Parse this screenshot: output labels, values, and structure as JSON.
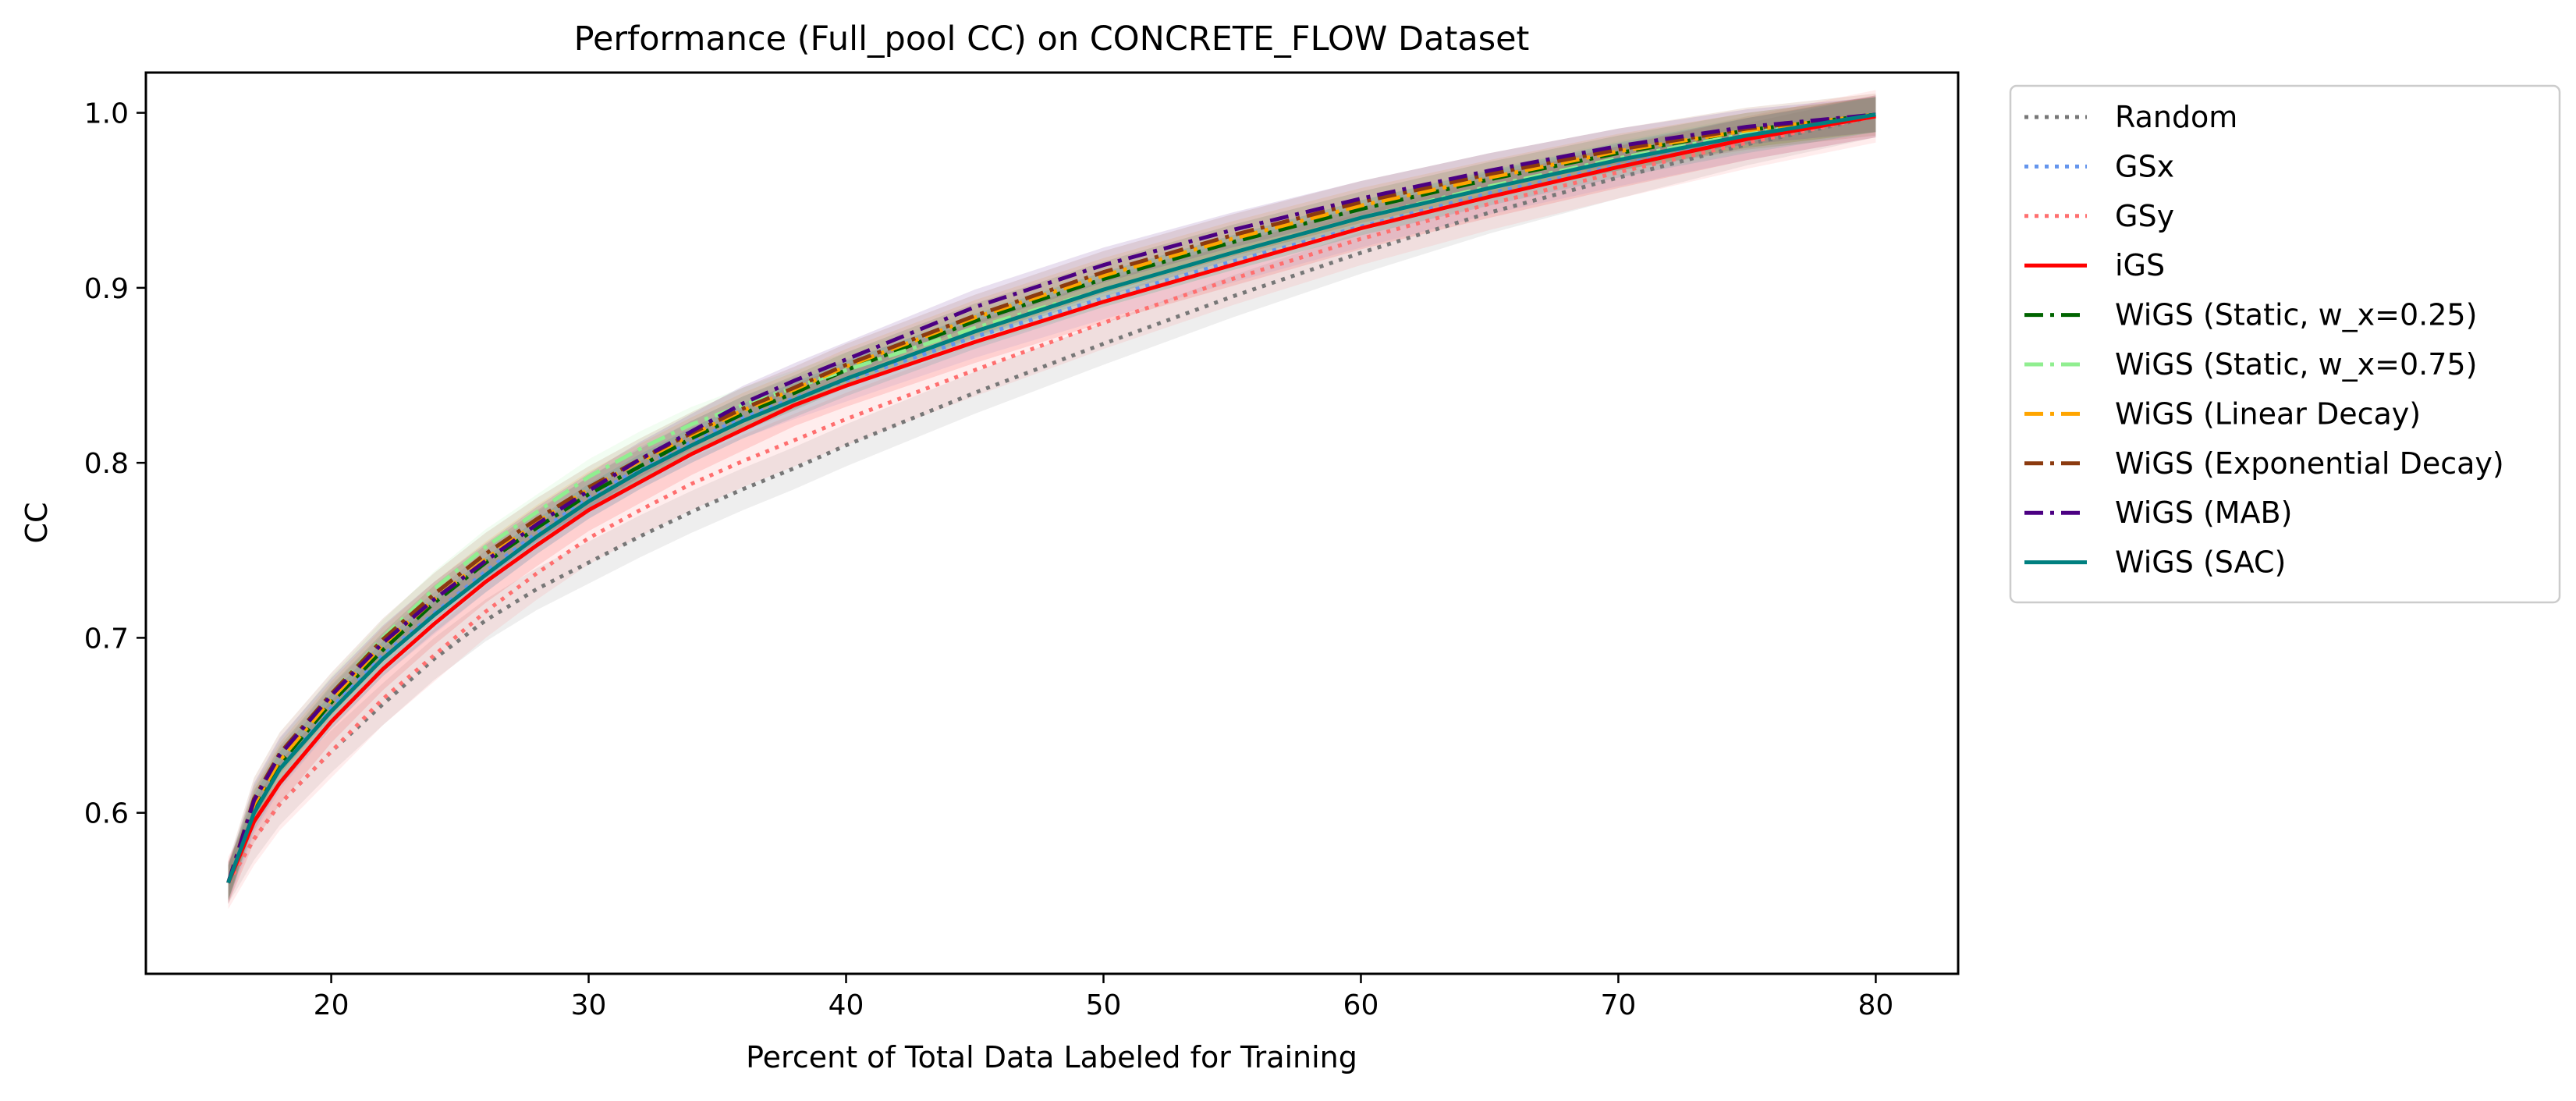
{
  "chart_data": {
    "type": "line",
    "title": "Performance (Full_pool CC) on CONCRETE_FLOW Dataset",
    "xlabel": "Percent of Total Data Labeled for Training",
    "ylabel": "CC",
    "xlim": [
      12.8,
      83.2
    ],
    "ylim": [
      0.508,
      1.023
    ],
    "xticks": [
      20,
      30,
      40,
      50,
      60,
      70,
      80
    ],
    "xtick_labels": [
      "20",
      "30",
      "40",
      "50",
      "60",
      "70",
      "80"
    ],
    "yticks": [
      0.6,
      0.7,
      0.8,
      0.9,
      1.0
    ],
    "ytick_labels": [
      "0.6",
      "0.7",
      "0.8",
      "0.9",
      "1.0"
    ],
    "grid": false,
    "legend_position": "outside-right-top",
    "x": [
      16,
      17,
      18,
      20,
      22,
      24,
      26,
      28,
      30,
      32,
      34,
      36,
      38,
      40,
      45,
      50,
      55,
      60,
      65,
      70,
      75,
      80
    ],
    "series": [
      {
        "name": "Random",
        "color": "#777777",
        "style": "dotted",
        "band": 0.012,
        "values": [
          0.56,
          0.585,
          0.605,
          0.635,
          0.662,
          0.688,
          0.71,
          0.728,
          0.743,
          0.758,
          0.772,
          0.785,
          0.797,
          0.81,
          0.84,
          0.868,
          0.895,
          0.92,
          0.943,
          0.963,
          0.982,
          0.998
        ]
      },
      {
        "name": "GSx",
        "color": "#6495ED",
        "style": "dotted",
        "band": 0.012,
        "values": [
          0.56,
          0.6,
          0.625,
          0.66,
          0.69,
          0.714,
          0.738,
          0.76,
          0.78,
          0.797,
          0.812,
          0.826,
          0.837,
          0.847,
          0.872,
          0.894,
          0.915,
          0.935,
          0.954,
          0.97,
          0.985,
          0.998
        ]
      },
      {
        "name": "GSy",
        "color": "#FF6F6F",
        "style": "dotted",
        "band": 0.015,
        "values": [
          0.56,
          0.585,
          0.605,
          0.635,
          0.665,
          0.69,
          0.715,
          0.737,
          0.757,
          0.773,
          0.788,
          0.801,
          0.813,
          0.825,
          0.853,
          0.88,
          0.905,
          0.928,
          0.948,
          0.966,
          0.983,
          0.998
        ]
      },
      {
        "name": "iGS",
        "color": "#FF0000",
        "style": "solid",
        "band": 0.012,
        "values": [
          0.56,
          0.595,
          0.617,
          0.652,
          0.682,
          0.708,
          0.732,
          0.753,
          0.773,
          0.789,
          0.805,
          0.819,
          0.833,
          0.844,
          0.869,
          0.892,
          0.913,
          0.934,
          0.952,
          0.969,
          0.985,
          0.998
        ]
      },
      {
        "name": "WiGS (Static, w_x=0.25)",
        "color": "#006400",
        "style": "dashdot",
        "band": 0.01,
        "values": [
          0.56,
          0.603,
          0.628,
          0.663,
          0.693,
          0.72,
          0.743,
          0.763,
          0.782,
          0.798,
          0.814,
          0.828,
          0.84,
          0.853,
          0.881,
          0.905,
          0.926,
          0.945,
          0.962,
          0.977,
          0.99,
          0.999
        ]
      },
      {
        "name": "WiGS (Static, w_x=0.75)",
        "color": "#90EE90",
        "style": "dashdot",
        "band": 0.01,
        "values": [
          0.56,
          0.606,
          0.632,
          0.668,
          0.7,
          0.728,
          0.752,
          0.772,
          0.792,
          0.808,
          0.822,
          0.833,
          0.843,
          0.853,
          0.877,
          0.899,
          0.92,
          0.94,
          0.958,
          0.974,
          0.988,
          0.999
        ]
      },
      {
        "name": "WiGS (Linear Decay)",
        "color": "#FFA500",
        "style": "dashdot",
        "band": 0.01,
        "values": [
          0.56,
          0.605,
          0.63,
          0.665,
          0.696,
          0.722,
          0.745,
          0.766,
          0.785,
          0.801,
          0.816,
          0.83,
          0.842,
          0.855,
          0.883,
          0.907,
          0.928,
          0.947,
          0.963,
          0.978,
          0.99,
          0.999
        ]
      },
      {
        "name": "WiGS (Exponential Decay)",
        "color": "#8B3A0F",
        "style": "dashdot",
        "band": 0.012,
        "values": [
          0.56,
          0.608,
          0.634,
          0.668,
          0.699,
          0.725,
          0.748,
          0.768,
          0.786,
          0.802,
          0.817,
          0.831,
          0.843,
          0.856,
          0.884,
          0.909,
          0.93,
          0.949,
          0.965,
          0.979,
          0.991,
          0.999
        ]
      },
      {
        "name": "WiGS (MAB)",
        "color": "#4B0082",
        "style": "dashdot",
        "band": 0.01,
        "values": [
          0.56,
          0.607,
          0.633,
          0.667,
          0.697,
          0.722,
          0.744,
          0.765,
          0.784,
          0.802,
          0.818,
          0.834,
          0.847,
          0.859,
          0.889,
          0.913,
          0.933,
          0.951,
          0.967,
          0.981,
          0.992,
          0.999
        ]
      },
      {
        "name": "WiGS (SAC)",
        "color": "#008080",
        "style": "solid",
        "band": 0.01,
        "values": [
          0.56,
          0.6,
          0.625,
          0.658,
          0.688,
          0.713,
          0.736,
          0.758,
          0.778,
          0.795,
          0.81,
          0.824,
          0.836,
          0.848,
          0.875,
          0.899,
          0.92,
          0.94,
          0.957,
          0.973,
          0.987,
          0.999
        ]
      }
    ]
  }
}
